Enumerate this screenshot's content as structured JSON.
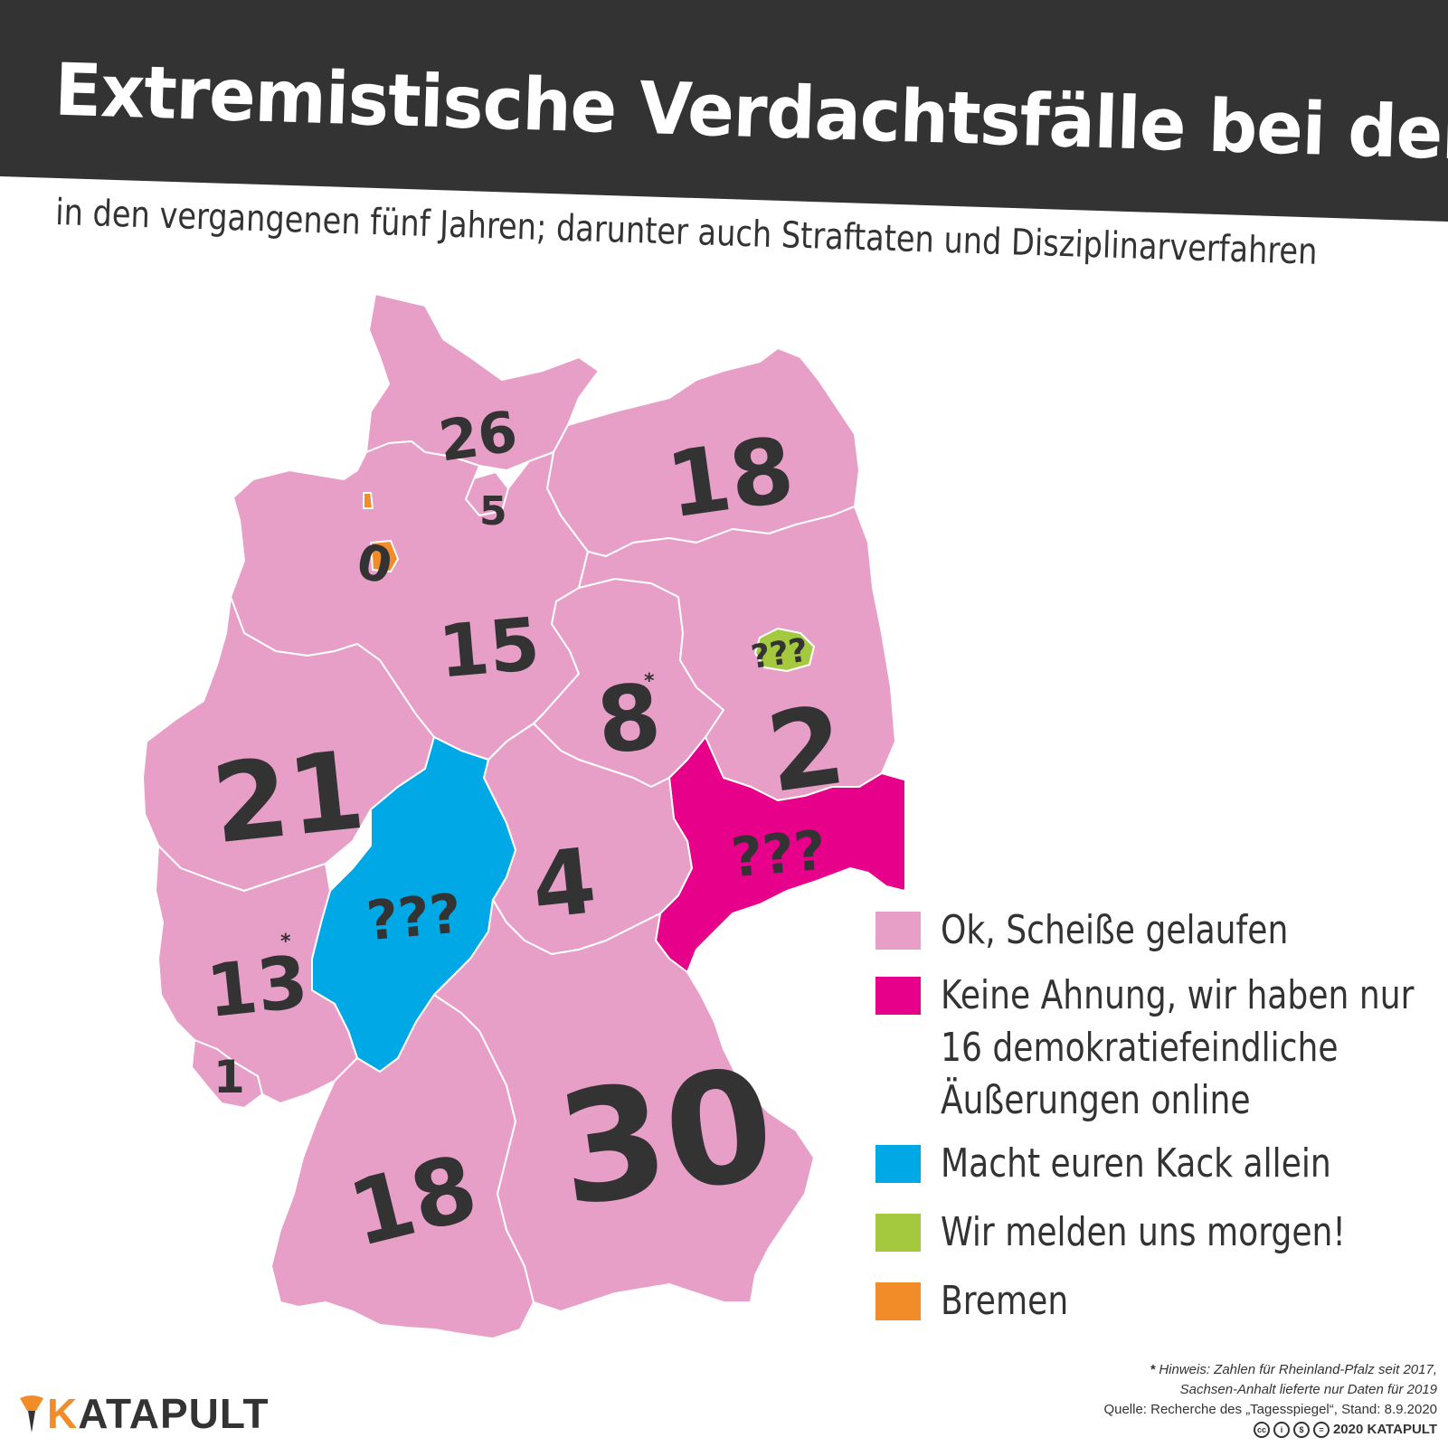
{
  "header": {
    "title": "Extremistische Verdachtsfälle bei der Polizei",
    "subtitle": "in den vergangenen fünf Jahren; darunter auch Straftaten und Disziplinarverfahren"
  },
  "map_values": {
    "schleswig_holstein": "26",
    "hamburg": "5",
    "mecklenburg_vorpommern": "18",
    "bremen": "0",
    "niedersachsen": "15",
    "sachsen_anhalt": "8",
    "sachsen_anhalt_mark": "*",
    "berlin": "???",
    "brandenburg": "2",
    "nordrhein_westfalen": "21",
    "sachsen": "???",
    "thueringen": "4",
    "hessen": "???",
    "rheinland_pfalz": "13",
    "rheinland_pfalz_mark": "*",
    "saarland": "1",
    "baden_wuerttemberg": "18",
    "bayern": "30"
  },
  "legend": [
    {
      "label": "Ok, Scheiße gelaufen",
      "color": "#e89fc7"
    },
    {
      "label": "Keine Ahnung, wir haben nur\n16 demokratiefeindliche\nÄußerungen online",
      "color": "#e6008a"
    },
    {
      "label": "Macht euren Kack allein",
      "color": "#00a9e6"
    },
    {
      "label": "Wir melden uns morgen!",
      "color": "#a4c93f"
    },
    {
      "label": "Bremen",
      "color": "#f28c28"
    }
  ],
  "colors": {
    "banner": "#333333",
    "border": "#ffffff"
  },
  "footnote": {
    "mark": "*",
    "line1": "Hinweis: Zahlen für Rheinland-Pfalz seit 2017,",
    "line2": "Sachsen-Anhalt lieferte nur Daten für 2019",
    "source": "Quelle: Recherche des „Tagesspiegel“, Stand: 8.9.2020",
    "license": "2020 KATAPULT"
  },
  "logo": {
    "first_letter": "K",
    "rest": "ATAPULT",
    "icon": "catapult-icon"
  }
}
